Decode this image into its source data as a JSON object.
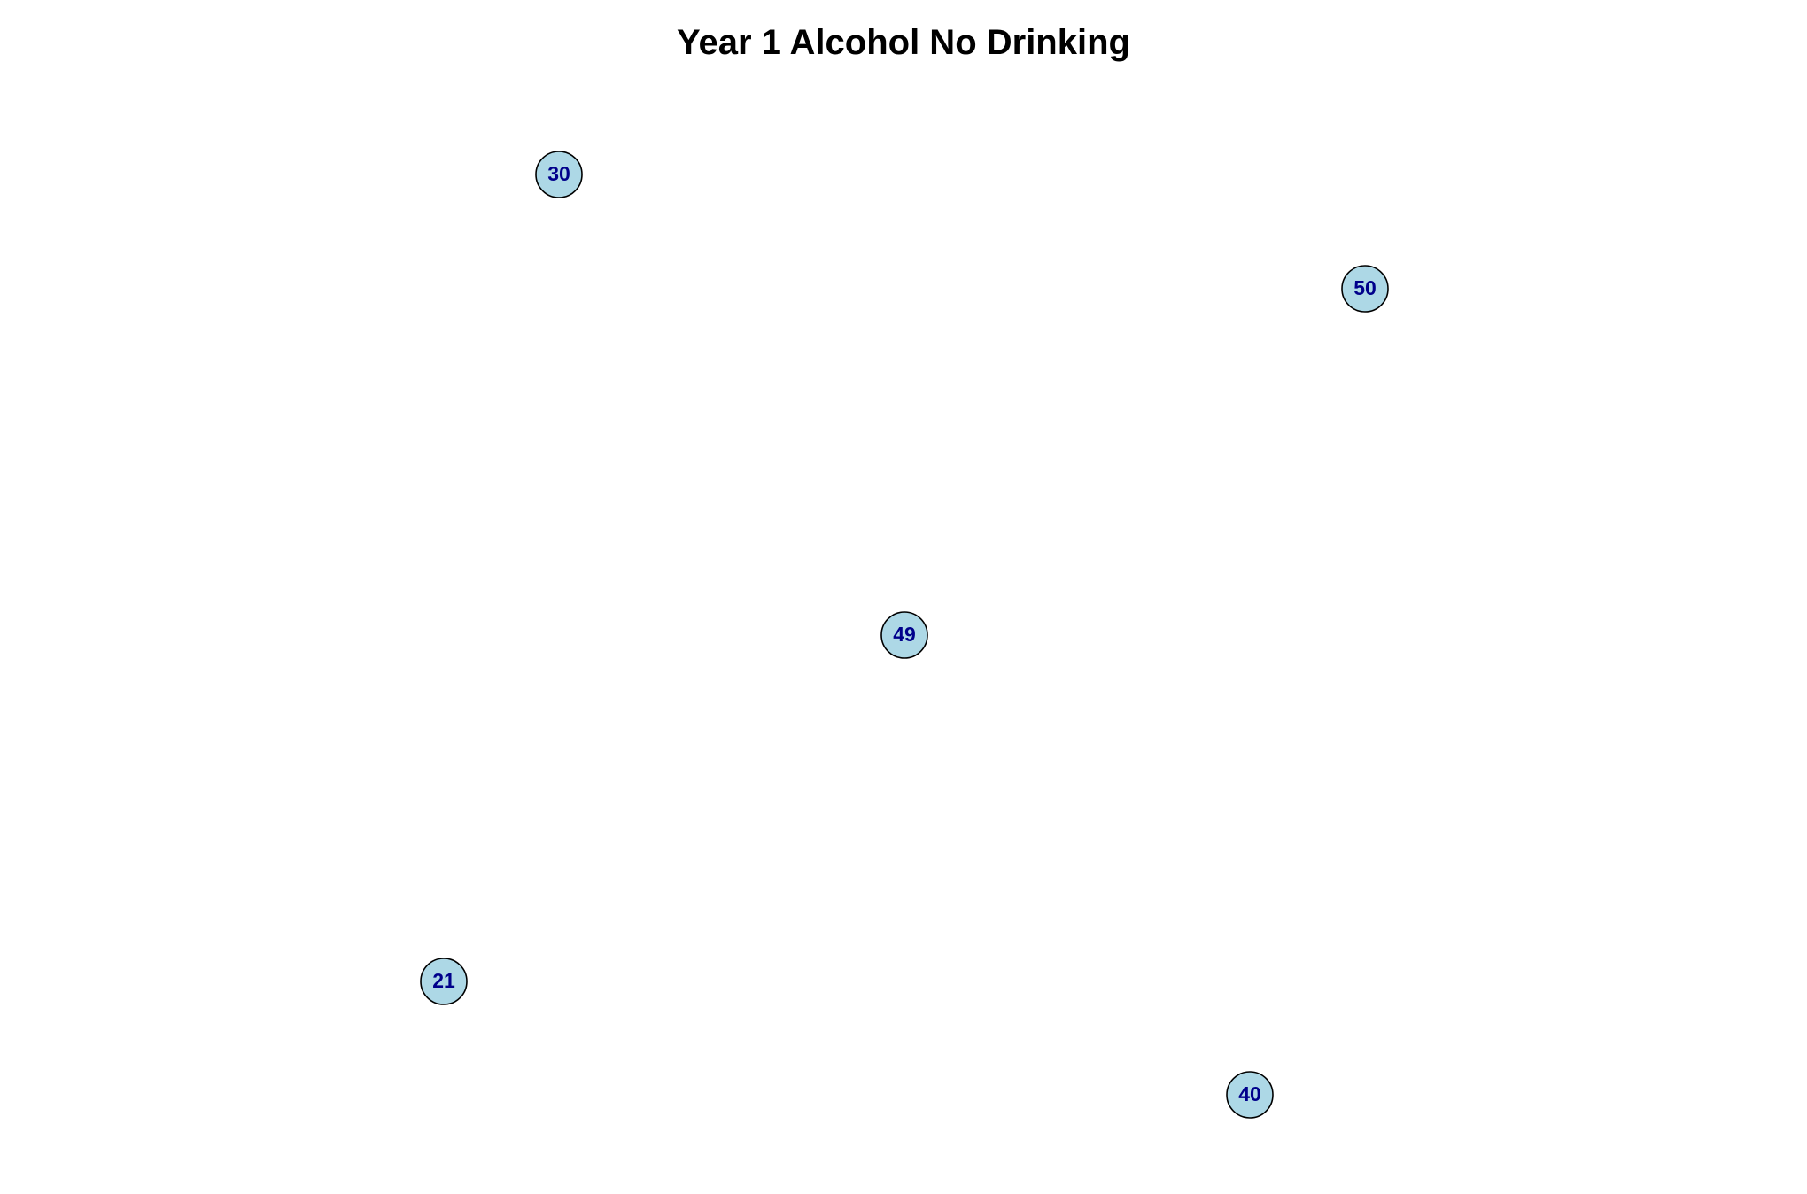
{
  "title": "Year 1 Alcohol No Drinking",
  "colors": {
    "node_fill": "#ADD8E6",
    "node_stroke": "#000000",
    "label_color": "#00008B",
    "title_color": "#000000"
  },
  "nodes": [
    {
      "id": "30",
      "label": "30"
    },
    {
      "id": "50",
      "label": "50"
    },
    {
      "id": "49",
      "label": "49"
    },
    {
      "id": "21",
      "label": "21"
    },
    {
      "id": "40",
      "label": "40"
    }
  ],
  "edges": []
}
